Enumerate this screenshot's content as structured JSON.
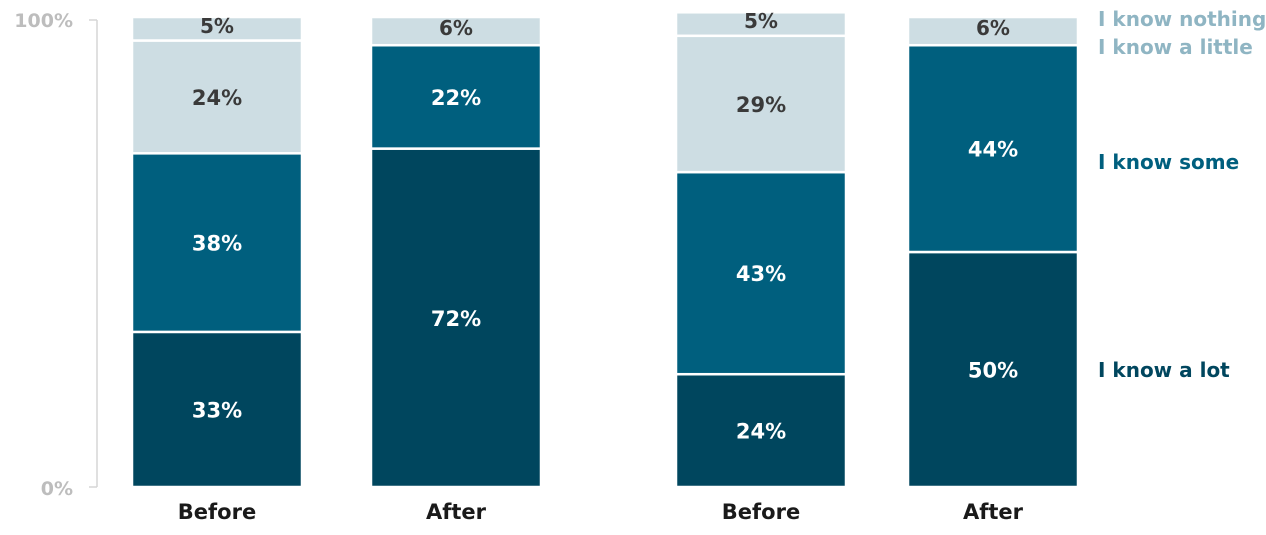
{
  "chart_data": {
    "type": "bar",
    "stacked": true,
    "normalized": true,
    "ylim": [
      0,
      100
    ],
    "yticks": [
      "0%",
      "100%"
    ],
    "categories": [
      "Before",
      "After",
      "Before",
      "After"
    ],
    "series": [
      {
        "name": "I know a lot",
        "values": [
          33,
          72,
          24,
          50
        ],
        "color": "#00465e"
      },
      {
        "name": "I know some",
        "values": [
          38,
          22,
          43,
          44
        ],
        "color": "#005f7e"
      },
      {
        "name": "I know a little",
        "values": [
          24,
          0,
          29,
          0
        ],
        "color": "#cddde3"
      },
      {
        "name": "I know nothing",
        "values": [
          5,
          6,
          5,
          6
        ],
        "color": "#cddde3"
      }
    ],
    "segment_labels": [
      [
        "33%",
        "38%",
        "24%",
        "5%"
      ],
      [
        "72%",
        "22%",
        "",
        "6%"
      ],
      [
        "24%",
        "43%",
        "29%",
        "5%"
      ],
      [
        "50%",
        "44%",
        "",
        "6%"
      ]
    ],
    "legend": [
      {
        "label": "I know nothing",
        "color": "#8fb5c3"
      },
      {
        "label": "I know a little",
        "color": "#8fb5c3"
      },
      {
        "label": "I know some",
        "color": "#005f7e"
      },
      {
        "label": "I know a lot",
        "color": "#00465e"
      }
    ],
    "colors": {
      "light_label_text": "#3a3a3a",
      "dark_label_text": "#ffffff",
      "axis_text": "#bdbdbd",
      "axis_line": "#d6d6d6",
      "category_text": "#1a1a1a"
    }
  }
}
